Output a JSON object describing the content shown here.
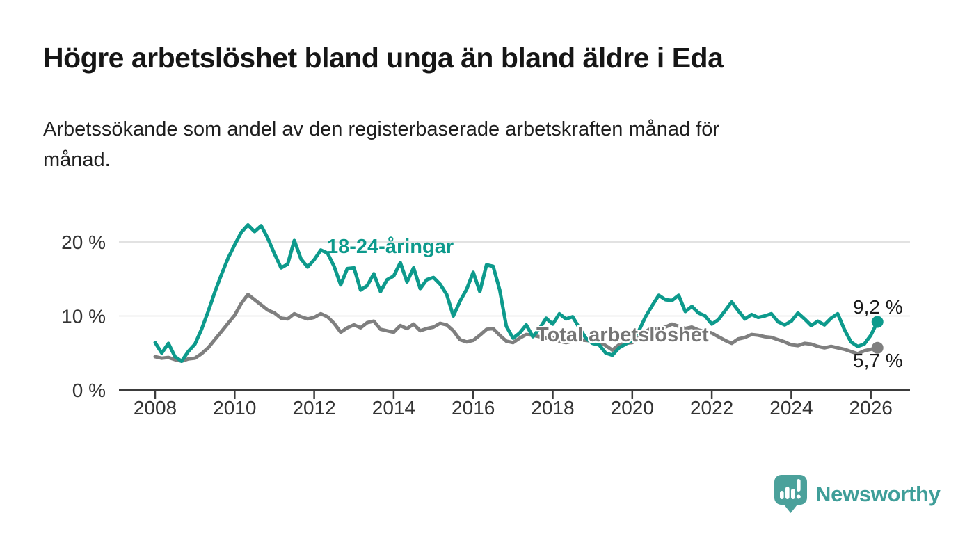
{
  "header": {
    "title": "Högre arbetslöshet bland unga än bland äldre i Eda",
    "subtitle_line1": "Arbetssökande som andel av den registerbaserade arbetskraften månad för",
    "subtitle_line2": "månad."
  },
  "chart_data": {
    "type": "line",
    "x_start": 2008,
    "x_step_years": 0.166667,
    "x_tick_years": [
      2008,
      2010,
      2012,
      2014,
      2016,
      2018,
      2020,
      2022,
      2024,
      2026
    ],
    "x_tick_labels": [
      "2008",
      "2010",
      "2012",
      "2014",
      "2016",
      "2018",
      "2020",
      "2022",
      "2024",
      "2026"
    ],
    "y_ticks": [
      {
        "value": 0,
        "label": "0 %"
      },
      {
        "value": 10,
        "label": "10 %"
      },
      {
        "value": 20,
        "label": "20 %"
      }
    ],
    "ylim": [
      0,
      23
    ],
    "grid": "horizontal",
    "legend_position": "inline-labels",
    "series": [
      {
        "name": "Total arbetslöshet",
        "color": "#7f7f7f",
        "end_label": "5,7 %",
        "values": [
          4.5,
          4.3,
          4.4,
          4.1,
          3.9,
          4.2,
          4.3,
          4.9,
          5.7,
          6.8,
          7.9,
          9.0,
          10.1,
          11.7,
          12.9,
          12.2,
          11.5,
          10.8,
          10.4,
          9.7,
          9.6,
          10.3,
          9.9,
          9.6,
          9.8,
          10.3,
          9.9,
          9.0,
          7.8,
          8.4,
          8.8,
          8.4,
          9.1,
          9.3,
          8.2,
          8.0,
          7.8,
          8.7,
          8.3,
          8.9,
          8.0,
          8.3,
          8.5,
          9.0,
          8.8,
          8.0,
          6.8,
          6.5,
          6.7,
          7.4,
          8.2,
          8.3,
          7.4,
          6.6,
          6.4,
          7.0,
          7.5,
          7.4,
          7.2,
          7.0,
          7.1,
          6.6,
          6.4,
          6.6,
          6.8,
          6.7,
          6.6,
          6.5,
          6.0,
          5.4,
          6.1,
          6.3,
          6.4,
          7.1,
          7.9,
          8.4,
          8.2,
          8.5,
          8.9,
          8.6,
          8.3,
          8.5,
          8.1,
          7.9,
          7.7,
          7.2,
          6.7,
          6.3,
          6.9,
          7.1,
          7.5,
          7.4,
          7.2,
          7.1,
          6.8,
          6.5,
          6.1,
          6.0,
          6.3,
          6.2,
          5.9,
          5.7,
          5.9,
          5.7,
          5.5,
          5.2,
          4.9,
          5.3,
          5.5,
          5.7
        ]
      },
      {
        "name": "18-24-åringar",
        "color": "#0d9a8c",
        "end_label": "9,2 %",
        "values": [
          6.4,
          5.0,
          6.3,
          4.5,
          3.9,
          5.2,
          6.2,
          8.2,
          10.6,
          13.2,
          15.6,
          17.8,
          19.6,
          21.3,
          22.3,
          21.4,
          22.2,
          20.5,
          18.4,
          16.5,
          17.0,
          20.2,
          17.7,
          16.6,
          17.6,
          18.9,
          18.5,
          16.7,
          14.2,
          16.4,
          16.5,
          13.5,
          14.1,
          15.7,
          13.3,
          14.9,
          15.4,
          17.2,
          14.6,
          16.5,
          13.7,
          14.9,
          15.2,
          14.3,
          12.9,
          10.0,
          12.0,
          13.6,
          15.9,
          13.3,
          16.9,
          16.7,
          13.5,
          8.6,
          7.0,
          7.7,
          8.8,
          7.2,
          8.3,
          9.7,
          8.9,
          10.3,
          9.6,
          9.9,
          8.4,
          7.0,
          6.3,
          6.1,
          5.0,
          4.7,
          5.7,
          6.2,
          6.7,
          8.0,
          9.9,
          11.4,
          12.8,
          12.2,
          12.1,
          12.8,
          10.6,
          11.3,
          10.4,
          10.0,
          8.9,
          9.5,
          10.7,
          11.9,
          10.7,
          9.6,
          10.2,
          9.8,
          10.0,
          10.3,
          9.2,
          8.8,
          9.3,
          10.4,
          9.6,
          8.7,
          9.3,
          8.8,
          9.7,
          10.3,
          8.2,
          6.5,
          5.9,
          6.2,
          7.4,
          9.2
        ]
      }
    ],
    "annotations": {
      "young_label": "18-24-åringar",
      "total_label": "Total arbetslöshet",
      "young_end_value": "9,2 %",
      "total_end_value": "5,7 %"
    }
  },
  "footer": {
    "brand": "Newsworthy"
  },
  "colors": {
    "teal": "#0d9a8c",
    "gray": "#7f7f7f",
    "grid": "#d9d9d9",
    "axis": "#3b3b3b",
    "axis_text": "#333333",
    "brand_teal": "#3f9e99",
    "logo_bubble": "#4ba19b"
  }
}
